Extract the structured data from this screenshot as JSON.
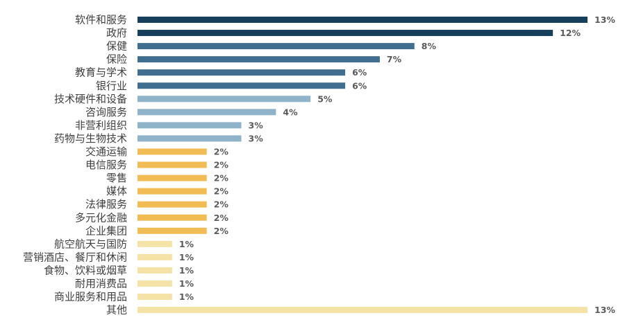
{
  "chart_data": {
    "type": "bar",
    "orientation": "horizontal",
    "title": "",
    "xlabel": "",
    "ylabel": "",
    "xlim": [
      0,
      13
    ],
    "grid": false,
    "legend": "none",
    "value_suffix": "%",
    "colors": {
      "navy": "#163f5c",
      "steel": "#3f6e8e",
      "light_blue": "#8fb3c9",
      "gold": "#f2bc55",
      "pale": "#f4e2a6"
    },
    "categories": [
      "软件和服务",
      "政府",
      "保健",
      "保险",
      "教育与学术",
      "银行业",
      "技术硬件和设备",
      "咨询服务",
      "非营利组织",
      "药物与生物技术",
      "交通运输",
      "电信服务",
      "零售",
      "媒体",
      "法律服务",
      "多元化金融",
      "企业集团",
      "航空航天与国防",
      "营销酒店、餐厅和休闲",
      "食物、饮料或烟草",
      "耐用消费品",
      "商业服务和用品",
      "其他"
    ],
    "values": [
      13,
      12,
      8,
      7,
      6,
      6,
      5,
      4,
      3,
      3,
      2,
      2,
      2,
      2,
      2,
      2,
      2,
      1,
      1,
      1,
      1,
      1,
      13
    ],
    "value_labels": [
      "13%",
      "12%",
      "8%",
      "7%",
      "6%",
      "6%",
      "5%",
      "4%",
      "3%",
      "3%",
      "2%",
      "2%",
      "2%",
      "2%",
      "2%",
      "2%",
      "2%",
      "1%",
      "1%",
      "1%",
      "1%",
      "1%",
      "13%"
    ],
    "bar_colors": [
      "#163f5c",
      "#163f5c",
      "#3f6e8e",
      "#3f6e8e",
      "#3f6e8e",
      "#3f6e8e",
      "#8fb3c9",
      "#8fb3c9",
      "#8fb3c9",
      "#8fb3c9",
      "#f2bc55",
      "#f2bc55",
      "#f2bc55",
      "#f2bc55",
      "#f2bc55",
      "#f2bc55",
      "#f2bc55",
      "#f4e2a6",
      "#f4e2a6",
      "#f4e2a6",
      "#f4e2a6",
      "#f4e2a6",
      "#f4e2a6"
    ]
  }
}
